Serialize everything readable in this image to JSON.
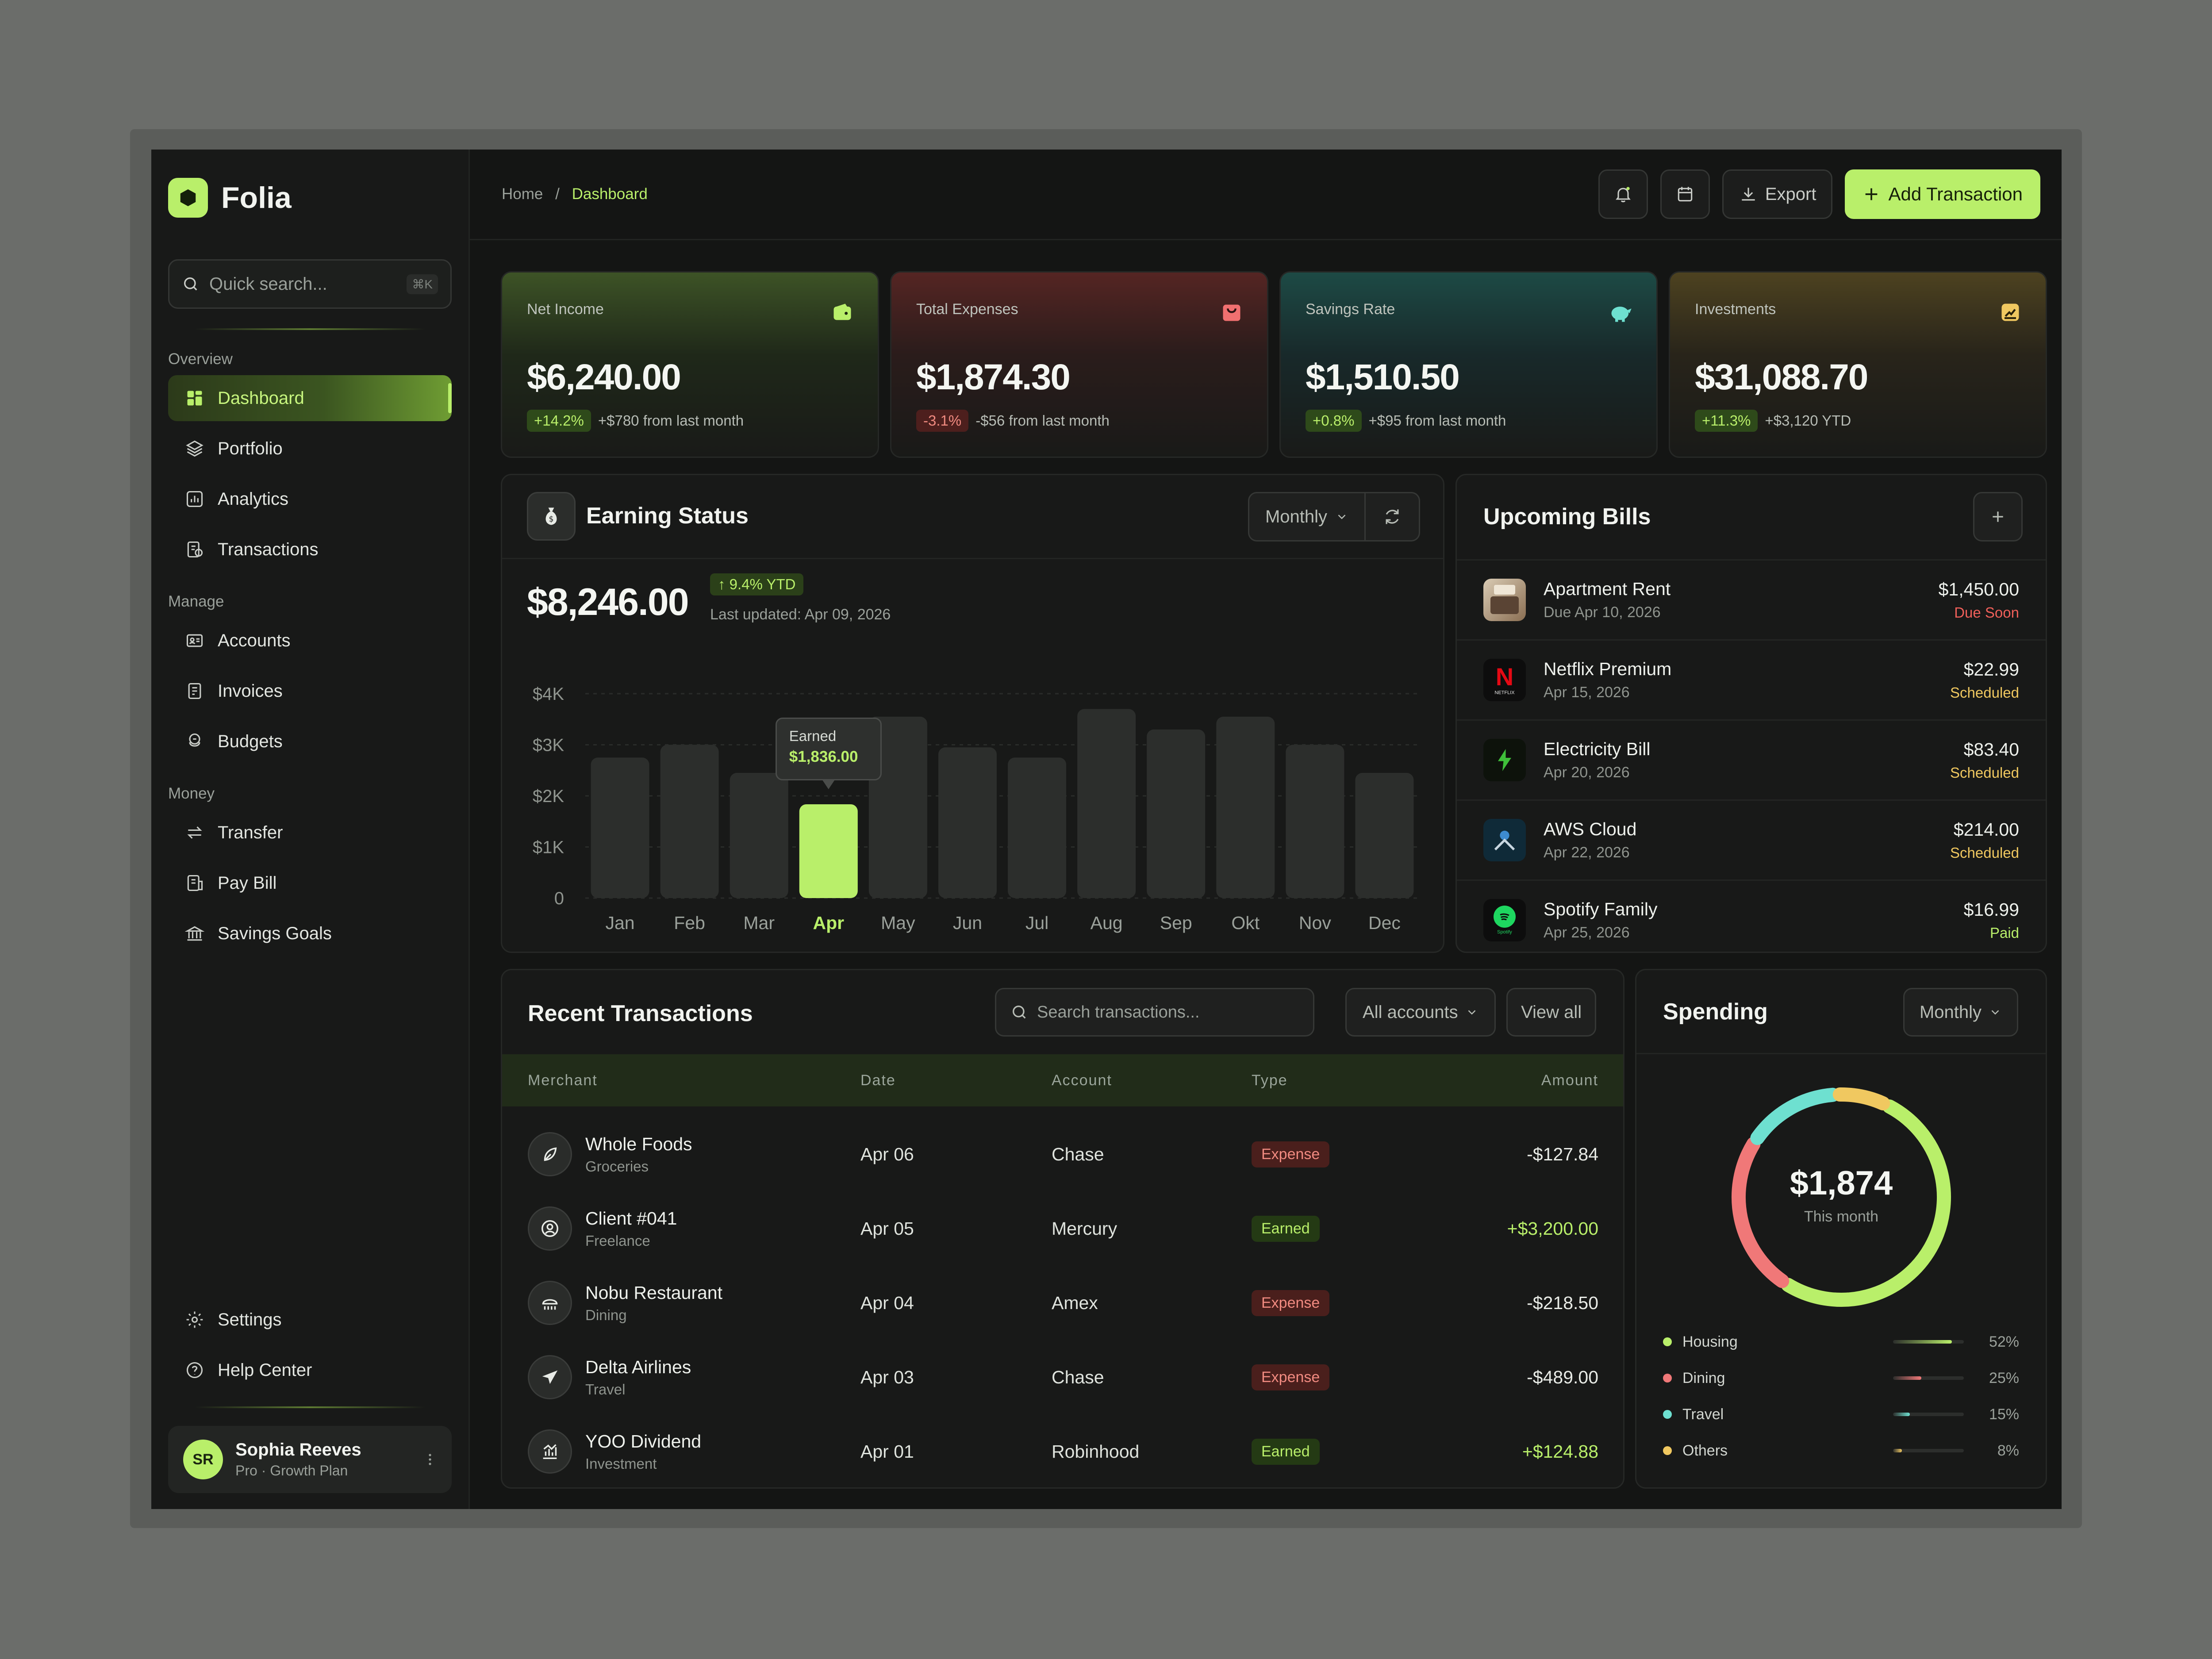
{
  "app": {
    "name": "Folia"
  },
  "sidebar": {
    "search_placeholder": "Quick search...",
    "search_shortcut": "⌘K",
    "sections": {
      "overview": "Overview",
      "manage": "Manage",
      "money": "Money"
    },
    "items": {
      "dashboard": "Dashboard",
      "portfolio": "Portfolio",
      "analytics": "Analytics",
      "transactions": "Transactions",
      "accounts": "Accounts",
      "invoices": "Invoices",
      "budgets": "Budgets",
      "transfer": "Transfer",
      "pay_bill": "Pay Bill",
      "savings_goals": "Savings Goals",
      "settings": "Settings",
      "help_center": "Help Center"
    },
    "user": {
      "initials": "SR",
      "name": "Sophia Reeves",
      "plan": "Pro · Growth Plan"
    }
  },
  "header": {
    "breadcrumb_home": "Home",
    "breadcrumb_sep": "/",
    "breadcrumb_current": "Dashboard",
    "export_label": "Export",
    "add_label": "Add Transaction"
  },
  "stats": [
    {
      "label": "Net Income",
      "value": "$6,240.00",
      "change": "+14.2%",
      "note": "+$780 from last month",
      "color": "#b9ef6a"
    },
    {
      "label": "Total Expenses",
      "value": "$1,874.30",
      "change": "-3.1%",
      "note": "-$56 from last month",
      "color": "#f07070"
    },
    {
      "label": "Savings Rate",
      "value": "$1,510.50",
      "change": "+0.8%",
      "note": "+$95 from last month",
      "color": "#6ee0d0"
    },
    {
      "label": "Investments",
      "value": "$31,088.70",
      "change": "+11.3%",
      "note": "+$3,120 YTD",
      "color": "#f0c860"
    }
  ],
  "earning": {
    "title": "Earning Status",
    "period": "Monthly",
    "total": "$8,246.00",
    "ytd": "↑ 9.4% YTD",
    "updated": "Last updated: Apr 09, 2026",
    "tooltip_label": "Earned",
    "tooltip_value": "$1,836.00"
  },
  "chart_data": {
    "type": "bar",
    "categories": [
      "Jan",
      "Feb",
      "Mar",
      "Apr",
      "May",
      "Jun",
      "Jul",
      "Aug",
      "Sep",
      "Okt",
      "Nov",
      "Dec"
    ],
    "values": [
      2750,
      3000,
      2450,
      1836,
      3550,
      2950,
      2750,
      3700,
      3300,
      3550,
      3000,
      2450
    ],
    "highlight": "Apr",
    "yticks": [
      "0",
      "$1K",
      "$2K",
      "$3K",
      "$4K"
    ],
    "ylim": [
      0,
      4000
    ]
  },
  "bills": {
    "title": "Upcoming Bills",
    "items": [
      {
        "name": "Apartment Rent",
        "date": "Due Apr 10, 2026",
        "amount": "$1,450.00",
        "status": "Due Soon",
        "status_color": "#f0605a"
      },
      {
        "name": "Netflix Premium",
        "date": "Apr 15, 2026",
        "amount": "$22.99",
        "status": "Scheduled",
        "status_color": "#f0c860"
      },
      {
        "name": "Electricity Bill",
        "date": "Apr 20, 2026",
        "amount": "$83.40",
        "status": "Scheduled",
        "status_color": "#f0c860"
      },
      {
        "name": "AWS Cloud",
        "date": "Apr 22, 2026",
        "amount": "$214.00",
        "status": "Scheduled",
        "status_color": "#f0c860"
      },
      {
        "name": "Spotify Family",
        "date": "Apr 25, 2026",
        "amount": "$16.99",
        "status": "Paid",
        "status_color": "#b9ef6a"
      }
    ],
    "logo_texts": {
      "netflix": "NETFLIX",
      "spotify": "Spotify"
    }
  },
  "transactions": {
    "title": "Recent Transactions",
    "search_placeholder": "Search transactions...",
    "filter": "All accounts",
    "view_all": "View all",
    "columns": [
      "Merchant",
      "Date",
      "Account",
      "Type",
      "Amount"
    ],
    "rows": [
      {
        "merchant": "Whole Foods",
        "category": "Groceries",
        "date": "Apr 06",
        "account": "Chase",
        "type": "Expense",
        "amount": "-$127.84"
      },
      {
        "merchant": "Client #041",
        "category": "Freelance",
        "date": "Apr 05",
        "account": "Mercury",
        "type": "Earned",
        "amount": "+$3,200.00"
      },
      {
        "merchant": "Nobu Restaurant",
        "category": "Dining",
        "date": "Apr 04",
        "account": "Amex",
        "type": "Expense",
        "amount": "-$218.50"
      },
      {
        "merchant": "Delta Airlines",
        "category": "Travel",
        "date": "Apr 03",
        "account": "Chase",
        "type": "Expense",
        "amount": "-$489.00"
      },
      {
        "merchant": "YOO Dividend",
        "category": "Investment",
        "date": "Apr 01",
        "account": "Robinhood",
        "type": "Earned",
        "amount": "+$124.88"
      }
    ]
  },
  "spending": {
    "title": "Spending",
    "period": "Monthly",
    "total": "$1,874",
    "subtitle": "This month",
    "legend": [
      {
        "name": "Housing",
        "pct": "52%",
        "value": 52,
        "color": "#b9ef6a"
      },
      {
        "name": "Dining",
        "pct": "25%",
        "value": 25,
        "color": "#f07878"
      },
      {
        "name": "Travel",
        "pct": "15%",
        "value": 15,
        "color": "#6ee0d0"
      },
      {
        "name": "Others",
        "pct": "8%",
        "value": 8,
        "color": "#f0c860"
      }
    ]
  }
}
